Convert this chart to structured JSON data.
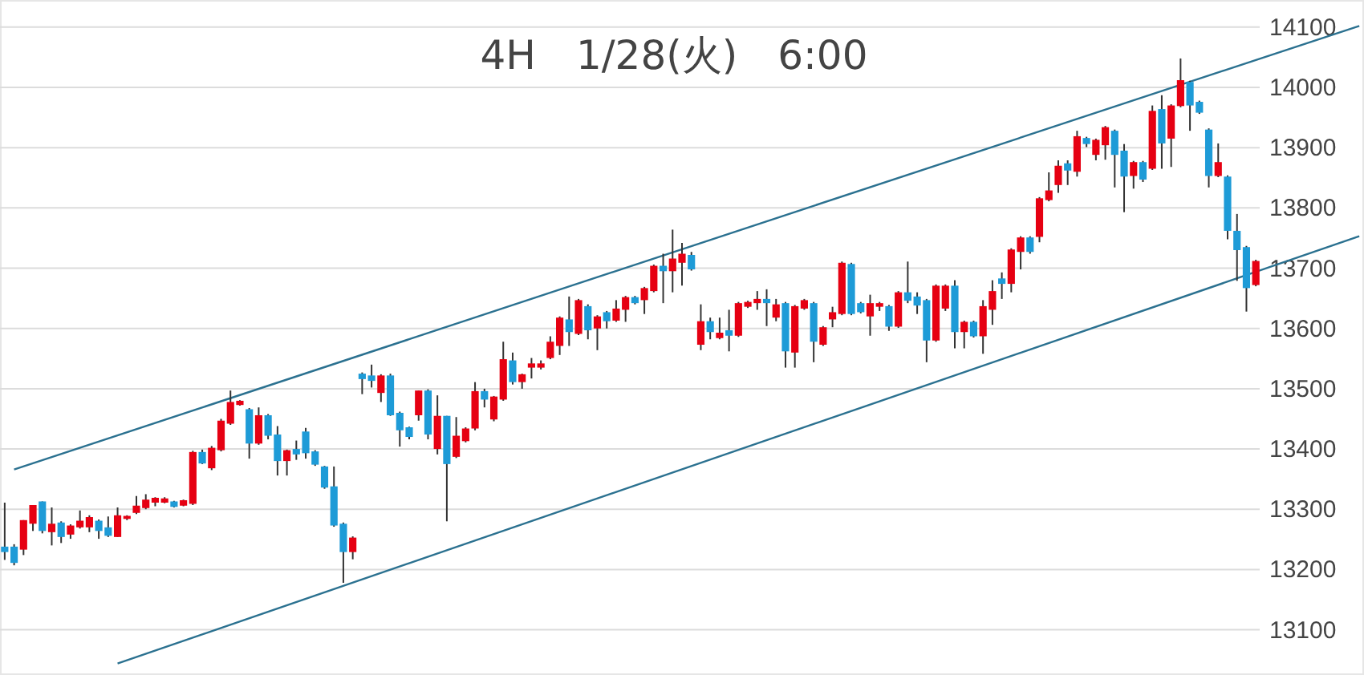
{
  "chart_data": {
    "type": "candlestick",
    "title": "4H　1/28(火)　6:00",
    "categories": [
      null,
      null,
      null,
      null,
      null,
      null,
      null,
      null,
      null,
      null,
      null,
      null,
      null,
      null,
      null,
      null,
      null,
      null,
      null,
      null,
      null,
      null,
      null,
      null,
      null,
      null,
      null,
      null,
      null,
      null,
      null,
      null,
      null,
      null,
      null,
      null,
      null,
      null,
      null,
      null,
      null,
      null,
      null,
      null,
      null,
      null,
      null,
      null,
      null,
      null,
      null,
      null,
      null,
      null,
      null,
      null,
      null,
      null,
      null,
      null,
      null,
      null,
      null,
      null,
      null,
      null,
      null,
      null,
      null,
      null,
      null,
      null,
      null,
      null,
      null,
      null,
      null,
      null,
      null,
      null,
      null,
      null,
      null,
      null,
      null,
      null,
      null,
      null,
      null,
      null,
      null,
      null,
      null,
      null,
      null,
      null,
      null,
      null,
      null,
      null,
      null,
      null,
      null,
      null,
      null,
      null,
      null,
      null,
      null,
      null,
      null,
      null,
      null,
      null,
      null,
      null,
      null,
      null,
      null,
      null,
      null,
      null,
      null,
      null,
      null,
      null,
      null,
      null,
      null,
      null,
      null,
      null,
      null,
      null,
      null,
      null,
      null,
      null,
      null,
      null,
      null,
      null,
      null,
      null,
      null
    ],
    "ohlc": [
      [
        13238,
        13311,
        13216,
        13229
      ],
      [
        13238,
        13242,
        13207,
        13211
      ],
      [
        13233,
        13282,
        13224,
        13282
      ],
      [
        13276,
        13307,
        13264,
        13307
      ],
      [
        13313,
        13313,
        13260,
        13264
      ],
      [
        13262,
        13303,
        13240,
        13276
      ],
      [
        13278,
        13280,
        13244,
        13254
      ],
      [
        13258,
        13275,
        13251,
        13273
      ],
      [
        13270,
        13298,
        13268,
        13281
      ],
      [
        13270,
        13290,
        13262,
        13287
      ],
      [
        13281,
        13283,
        13251,
        13264
      ],
      [
        13270,
        13288,
        13254,
        13256
      ],
      [
        13254,
        13303,
        13254,
        13290
      ],
      [
        13284,
        13290,
        13282,
        13289
      ],
      [
        13294,
        13322,
        13292,
        13306
      ],
      [
        13302,
        13325,
        13300,
        13316
      ],
      [
        13311,
        13320,
        13305,
        13319
      ],
      [
        13311,
        13320,
        13310,
        13318
      ],
      [
        13313,
        13314,
        13303,
        13304
      ],
      [
        13306,
        13316,
        13305,
        13315
      ],
      [
        13309,
        13397,
        13307,
        13395
      ],
      [
        13395,
        13399,
        13375,
        13376
      ],
      [
        13368,
        13405,
        13365,
        13402
      ],
      [
        13398,
        13450,
        13396,
        13447
      ],
      [
        13442,
        13497,
        13440,
        13478
      ],
      [
        13473,
        13481,
        13472,
        13480
      ],
      [
        13466,
        13468,
        13384,
        13409
      ],
      [
        13409,
        13469,
        13407,
        13456
      ],
      [
        13456,
        13458,
        13416,
        13422
      ],
      [
        13424,
        13438,
        13356,
        13380
      ],
      [
        13380,
        13399,
        13356,
        13398
      ],
      [
        13400,
        13414,
        13382,
        13391
      ],
      [
        13429,
        13435,
        13384,
        13393
      ],
      [
        13396,
        13398,
        13372,
        13374
      ],
      [
        13371,
        13372,
        13334,
        13336
      ],
      [
        13338,
        13371,
        13271,
        13273
      ],
      [
        13276,
        13278,
        13178,
        13229
      ],
      [
        13229,
        13255,
        13217,
        13253
      ],
      [
        13525,
        13527,
        13491,
        13516
      ],
      [
        13522,
        13540,
        13502,
        13513
      ],
      [
        13493,
        13524,
        13478,
        13522
      ],
      [
        13522,
        13525,
        13455,
        13456
      ],
      [
        13460,
        13462,
        13404,
        13431
      ],
      [
        13436,
        13437,
        13416,
        13420
      ],
      [
        13456,
        13497,
        13447,
        13497
      ],
      [
        13497,
        13499,
        13416,
        13424
      ],
      [
        13400,
        13489,
        13391,
        13455
      ],
      [
        13455,
        13455,
        13280,
        13375
      ],
      [
        13387,
        13453,
        13385,
        13422
      ],
      [
        13413,
        13436,
        13411,
        13434
      ],
      [
        13434,
        13511,
        13431,
        13496
      ],
      [
        13496,
        13500,
        13469,
        13482
      ],
      [
        13449,
        13488,
        13446,
        13487
      ],
      [
        13482,
        13578,
        13480,
        13549
      ],
      [
        13547,
        13560,
        13507,
        13511
      ],
      [
        13511,
        13525,
        13500,
        13524
      ],
      [
        13535,
        13551,
        13517,
        13542
      ],
      [
        13535,
        13547,
        13532,
        13542
      ],
      [
        13551,
        13587,
        13549,
        13578
      ],
      [
        13571,
        13620,
        13556,
        13618
      ],
      [
        13615,
        13653,
        13571,
        13594
      ],
      [
        13591,
        13649,
        13589,
        13647
      ],
      [
        13637,
        13640,
        13582,
        13597
      ],
      [
        13600,
        13622,
        13564,
        13620
      ],
      [
        13627,
        13629,
        13600,
        13612
      ],
      [
        13613,
        13647,
        13611,
        13633
      ],
      [
        13631,
        13654,
        13611,
        13652
      ],
      [
        13652,
        13654,
        13640,
        13642
      ],
      [
        13647,
        13669,
        13624,
        13667
      ],
      [
        13662,
        13706,
        13660,
        13704
      ],
      [
        13704,
        13724,
        13642,
        13695
      ],
      [
        13695,
        13764,
        13660,
        13716
      ],
      [
        13709,
        13742,
        13671,
        13724
      ],
      [
        13722,
        13727,
        13696,
        13698
      ],
      [
        13573,
        13640,
        13564,
        13612
      ],
      [
        13612,
        13618,
        13582,
        13594
      ],
      [
        13584,
        13618,
        13582,
        13593
      ],
      [
        13597,
        13631,
        13562,
        13588
      ],
      [
        13588,
        13644,
        13586,
        13642
      ],
      [
        13636,
        13646,
        13634,
        13644
      ],
      [
        13642,
        13662,
        13631,
        13649
      ],
      [
        13649,
        13665,
        13604,
        13642
      ],
      [
        13618,
        13649,
        13612,
        13640
      ],
      [
        13642,
        13644,
        13535,
        13562
      ],
      [
        13560,
        13639,
        13535,
        13637
      ],
      [
        13633,
        13649,
        13631,
        13647
      ],
      [
        13642,
        13644,
        13544,
        13578
      ],
      [
        13573,
        13604,
        13571,
        13602
      ],
      [
        13615,
        13636,
        13602,
        13627
      ],
      [
        13624,
        13711,
        13622,
        13709
      ],
      [
        13707,
        13709,
        13622,
        13624
      ],
      [
        13642,
        13644,
        13625,
        13627
      ],
      [
        13620,
        13656,
        13588,
        13642
      ],
      [
        13636,
        13644,
        13629,
        13642
      ],
      [
        13637,
        13639,
        13596,
        13603
      ],
      [
        13603,
        13662,
        13601,
        13660
      ],
      [
        13660,
        13711,
        13642,
        13646
      ],
      [
        13653,
        13660,
        13624,
        13638
      ],
      [
        13647,
        13649,
        13544,
        13580
      ],
      [
        13580,
        13673,
        13578,
        13671
      ],
      [
        13633,
        13673,
        13629,
        13671
      ],
      [
        13671,
        13680,
        13567,
        13594
      ],
      [
        13594,
        13613,
        13567,
        13611
      ],
      [
        13611,
        13613,
        13585,
        13587
      ],
      [
        13587,
        13647,
        13558,
        13637
      ],
      [
        13631,
        13680,
        13606,
        13662
      ],
      [
        13683,
        13693,
        13649,
        13674
      ],
      [
        13674,
        13733,
        13660,
        13731
      ],
      [
        13727,
        13753,
        13698,
        13751
      ],
      [
        13751,
        13753,
        13724,
        13727
      ],
      [
        13752,
        13818,
        13743,
        13816
      ],
      [
        13813,
        13859,
        13811,
        13829
      ],
      [
        13838,
        13879,
        13825,
        13870
      ],
      [
        13874,
        13879,
        13838,
        13862
      ],
      [
        13860,
        13928,
        13852,
        13919
      ],
      [
        13916,
        13918,
        13901,
        13906
      ],
      [
        13888,
        13915,
        13879,
        13913
      ],
      [
        13904,
        13936,
        13880,
        13934
      ],
      [
        13928,
        13930,
        13834,
        13888
      ],
      [
        13895,
        13906,
        13793,
        13852
      ],
      [
        13853,
        13878,
        13832,
        13876
      ],
      [
        13876,
        13878,
        13843,
        13847
      ],
      [
        13865,
        13970,
        13863,
        13961
      ],
      [
        13964,
        13987,
        13865,
        13907
      ],
      [
        13915,
        13972,
        13868,
        13970
      ],
      [
        13969,
        14048,
        13967,
        14012
      ],
      [
        14009,
        14011,
        13928,
        13970
      ],
      [
        13976,
        13978,
        13956,
        13958
      ],
      [
        13930,
        13932,
        13834,
        13853
      ],
      [
        13853,
        13907,
        13851,
        13876
      ],
      [
        13852,
        13854,
        13748,
        13762
      ],
      [
        13762,
        13790,
        13679,
        13730
      ],
      [
        13735,
        13737,
        13628,
        13667
      ],
      [
        13672,
        13714,
        13670,
        13712
      ],
      null,
      null,
      null,
      null,
      null,
      null,
      null,
      null,
      null,
      null,
      null
    ],
    "colors": [
      "#1e9bd7",
      "#1e9bd7",
      "#e60012",
      "#e60012",
      "#1e9bd7",
      "#e60012",
      "#1e9bd7",
      "#e60012",
      "#e60012",
      "#e60012",
      "#1e9bd7",
      "#1e9bd7",
      "#e60012",
      "#e60012",
      "#e60012",
      "#e60012",
      "#e60012",
      "#e60012",
      "#1e9bd7",
      "#e60012",
      "#e60012",
      "#1e9bd7",
      "#e60012",
      "#e60012",
      "#e60012",
      "#e60012",
      "#1e9bd7",
      "#e60012",
      "#1e9bd7",
      "#1e9bd7",
      "#e60012",
      "#1e9bd7",
      "#1e9bd7",
      "#1e9bd7",
      "#1e9bd7",
      "#1e9bd7",
      "#1e9bd7",
      "#e60012",
      "#1e9bd7",
      "#1e9bd7",
      "#e60012",
      "#1e9bd7",
      "#1e9bd7",
      "#1e9bd7",
      "#e60012",
      "#1e9bd7",
      "#e60012",
      "#1e9bd7",
      "#e60012",
      "#e60012",
      "#e60012",
      "#1e9bd7",
      "#e60012",
      "#e60012",
      "#1e9bd7",
      "#e60012",
      "#e60012",
      "#e60012",
      "#e60012",
      "#e60012",
      "#1e9bd7",
      "#e60012",
      "#1e9bd7",
      "#e60012",
      "#1e9bd7",
      "#e60012",
      "#e60012",
      "#1e9bd7",
      "#e60012",
      "#e60012",
      "#1e9bd7",
      "#e60012",
      "#e60012",
      "#1e9bd7",
      "#e60012",
      "#1e9bd7",
      "#e60012",
      "#1e9bd7",
      "#e60012",
      "#e60012",
      "#e60012",
      "#1e9bd7",
      "#e60012",
      "#1e9bd7",
      "#e60012",
      "#e60012",
      "#1e9bd7",
      "#e60012",
      "#e60012",
      "#e60012",
      "#1e9bd7",
      "#1e9bd7",
      "#e60012",
      "#e60012",
      "#1e9bd7",
      "#e60012",
      "#1e9bd7",
      "#1e9bd7",
      "#1e9bd7",
      "#e60012",
      "#e60012",
      "#1e9bd7",
      "#e60012",
      "#1e9bd7",
      "#e60012",
      "#e60012",
      "#1e9bd7",
      "#e60012",
      "#e60012",
      "#1e9bd7",
      "#e60012",
      "#e60012",
      "#e60012",
      "#1e9bd7",
      "#e60012",
      "#1e9bd7",
      "#e60012",
      "#e60012",
      "#1e9bd7",
      "#1e9bd7",
      "#e60012",
      "#1e9bd7",
      "#e60012",
      "#1e9bd7",
      "#e60012",
      "#e60012",
      "#1e9bd7",
      "#1e9bd7",
      "#1e9bd7",
      "#e60012",
      "#1e9bd7",
      "#1e9bd7",
      "#1e9bd7",
      "#e60012",
      null,
      null,
      null,
      null,
      null,
      null,
      null,
      null,
      null,
      null,
      null
    ],
    "series": [
      {
        "type": "line",
        "color": "#2b7190",
        "values": [
          null,
          13366,
          null,
          null,
          null,
          null,
          null,
          null,
          null,
          null,
          null,
          null,
          null,
          null,
          null,
          null,
          null,
          null,
          null,
          null,
          null,
          null,
          null,
          null,
          null,
          null,
          null,
          null,
          null,
          null,
          null,
          null,
          null,
          null,
          null,
          null,
          null,
          null,
          null,
          null,
          null,
          null,
          null,
          null,
          null,
          null,
          null,
          null,
          null,
          null,
          null,
          null,
          null,
          null,
          null,
          null,
          null,
          null,
          null,
          null,
          null,
          null,
          null,
          null,
          null,
          null,
          null,
          null,
          null,
          null,
          null,
          null,
          null,
          null,
          null,
          null,
          null,
          null,
          null,
          null,
          null,
          null,
          null,
          null,
          null,
          null,
          null,
          null,
          null,
          null,
          null,
          null,
          null,
          null,
          null,
          null,
          null,
          null,
          null,
          null,
          null,
          null,
          null,
          null,
          null,
          null,
          null,
          null,
          null,
          null,
          null,
          null,
          null,
          null,
          null,
          null,
          null,
          null,
          null,
          null,
          null,
          null,
          null,
          null,
          null,
          null,
          null,
          null,
          null,
          null,
          null,
          null,
          null,
          null,
          null,
          null,
          null,
          null,
          null,
          null,
          null,
          null,
          null,
          null,
          14102
        ]
      },
      {
        "type": "line",
        "color": "#2b7190",
        "values": [
          null,
          null,
          null,
          null,
          null,
          null,
          null,
          null,
          null,
          null,
          null,
          null,
          13044,
          null,
          null,
          null,
          null,
          null,
          null,
          null,
          null,
          null,
          null,
          null,
          null,
          null,
          null,
          null,
          null,
          null,
          null,
          null,
          null,
          null,
          null,
          null,
          null,
          null,
          null,
          null,
          null,
          null,
          null,
          null,
          null,
          null,
          null,
          null,
          null,
          null,
          null,
          null,
          null,
          null,
          null,
          null,
          null,
          null,
          null,
          null,
          null,
          null,
          null,
          null,
          null,
          null,
          null,
          null,
          null,
          null,
          null,
          null,
          null,
          null,
          null,
          null,
          null,
          null,
          null,
          null,
          null,
          null,
          null,
          null,
          null,
          null,
          null,
          null,
          null,
          null,
          null,
          null,
          null,
          null,
          null,
          null,
          null,
          null,
          null,
          null,
          null,
          null,
          null,
          null,
          null,
          null,
          null,
          null,
          null,
          null,
          null,
          null,
          null,
          null,
          null,
          null,
          null,
          null,
          null,
          null,
          null,
          null,
          null,
          null,
          null,
          null,
          null,
          null,
          null,
          null,
          null,
          null,
          null,
          null,
          null,
          null,
          null,
          null,
          null,
          null,
          null,
          null,
          null,
          null,
          13753
        ]
      }
    ],
    "ylim": [
      13025,
      14145
    ],
    "yticks": [
      13100,
      13200,
      13300,
      13400,
      13500,
      13600,
      13700,
      13800,
      13900,
      14000,
      14100
    ],
    "grid": "y"
  }
}
